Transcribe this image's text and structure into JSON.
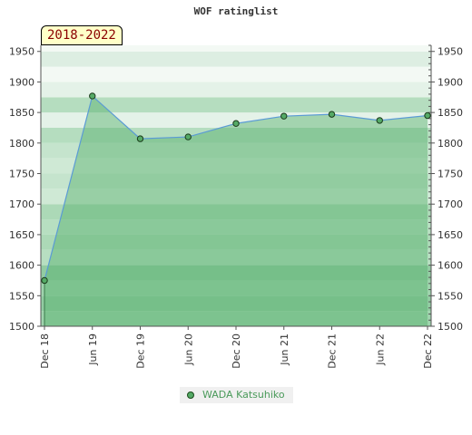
{
  "chart_data": {
    "type": "area",
    "title": "WOF ratinglist",
    "range_label": "2018-2022",
    "x": [
      "Dec 18",
      "Jun 19",
      "Dec 19",
      "Jun 20",
      "Dec 20",
      "Jun 21",
      "Dec 21",
      "Jun 22",
      "Dec 22"
    ],
    "series": [
      {
        "name": "WADA Katsuhiko",
        "values": [
          1575,
          1877,
          1807,
          1810,
          1832,
          1844,
          1847,
          1837,
          1845
        ]
      }
    ],
    "ylim": [
      1500,
      1960
    ],
    "yticks": [
      1500,
      1550,
      1600,
      1650,
      1700,
      1750,
      1800,
      1850,
      1900,
      1950
    ],
    "colors": {
      "line": "#5b9bd5",
      "fill": "#55b06a",
      "marker": "#55aa66"
    },
    "legend_position": "bottom"
  }
}
